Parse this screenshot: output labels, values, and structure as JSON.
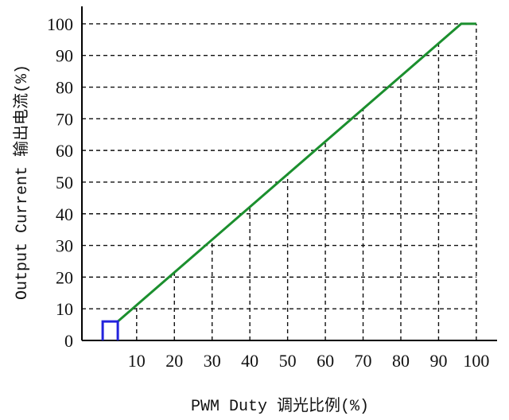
{
  "chart_data": {
    "type": "line",
    "xlabel": "PWM Duty 调光比例(%)",
    "ylabel": "Output Current 输出电流(%)",
    "xlim": [
      -4.5,
      105.5
    ],
    "ylim": [
      0,
      105.5
    ],
    "x_ticks": [
      10,
      20,
      30,
      40,
      50,
      60,
      70,
      80,
      90,
      100
    ],
    "y_ticks": [
      0,
      10,
      20,
      30,
      40,
      50,
      60,
      70,
      80,
      90,
      100
    ],
    "grid": true,
    "grid_style": "dashed",
    "legend": "none",
    "series": [
      {
        "x": [
          5,
          96,
          100
        ],
        "y": [
          6,
          100,
          100
        ],
        "color": "#1b8f2e"
      },
      {
        "x": [
          1,
          1,
          5,
          5
        ],
        "y": [
          0,
          6,
          6,
          0
        ],
        "color": "#2323dd"
      }
    ]
  }
}
